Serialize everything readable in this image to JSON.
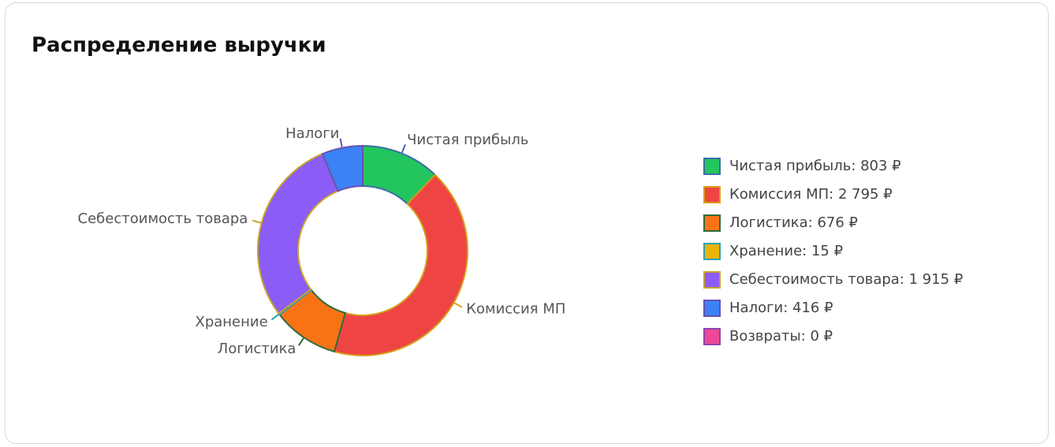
{
  "chart_data": {
    "type": "pie",
    "hole": true,
    "title": "Распределение выручки",
    "categories": [
      "Чистая прибыль",
      "Комиссия МП",
      "Логистика",
      "Хранение",
      "Себестоимость товара",
      "Налоги",
      null
    ],
    "values": [
      803,
      2795,
      676,
      15,
      1915,
      416,
      0
    ],
    "value_labels": [
      "Чистая прибыль: 803 ₽",
      "Комиссия МП: 2 795 ₽",
      "Логистика: 676 ₽",
      "Хранение: 15 ₽",
      "Себестоимость товара: 1 915 ₽",
      "Налоги: 416 ₽",
      "Возвраты: 0 ₽"
    ],
    "colors": [
      "#22c55e",
      "#ef4444",
      "#f97316",
      "#eab308",
      "#8b5cf6",
      "#3b82f6",
      "#ec4899"
    ],
    "line_colors": [
      "#3b6ea5",
      "#d4a017",
      "#2f6b3a",
      "#2aa1b3",
      "#c9a227",
      "#6b4fb0",
      "#8e44ad"
    ]
  }
}
